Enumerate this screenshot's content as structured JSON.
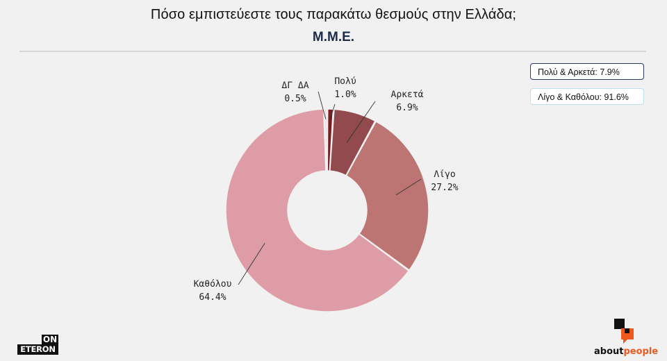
{
  "title": "Πόσο εμπιστεύεστε τους παρακάτω θεσμούς στην Ελλάδα;",
  "subtitle": "Μ.Μ.Ε.",
  "legend": [
    "Πολύ & Αρκετά: 7.9%",
    "Λίγο & Καθόλου: 91.6%"
  ],
  "brand_left": {
    "top": "ON",
    "bottom": "ETERON"
  },
  "brand_right": {
    "part1": "about",
    "part2": "people",
    "icon": "speech-bubble-squares-icon"
  },
  "colors": {
    "background": "#f1f1f1",
    "brand_orange": "#ee5a1d"
  },
  "chart_data": {
    "type": "pie",
    "donut": true,
    "categories": [
      "Πολύ",
      "Αρκετά",
      "Λίγο",
      "Καθόλου",
      "ΔΓ ΔΑ"
    ],
    "values": [
      1.0,
      6.9,
      27.2,
      64.4,
      0.5
    ],
    "value_labels": [
      "1.0%",
      "6.9%",
      "27.2%",
      "64.4%",
      "0.5%"
    ],
    "colors": [
      "#7a1c24",
      "#924a4f",
      "#bc7572",
      "#de9da6",
      "#f2d4d7"
    ]
  }
}
